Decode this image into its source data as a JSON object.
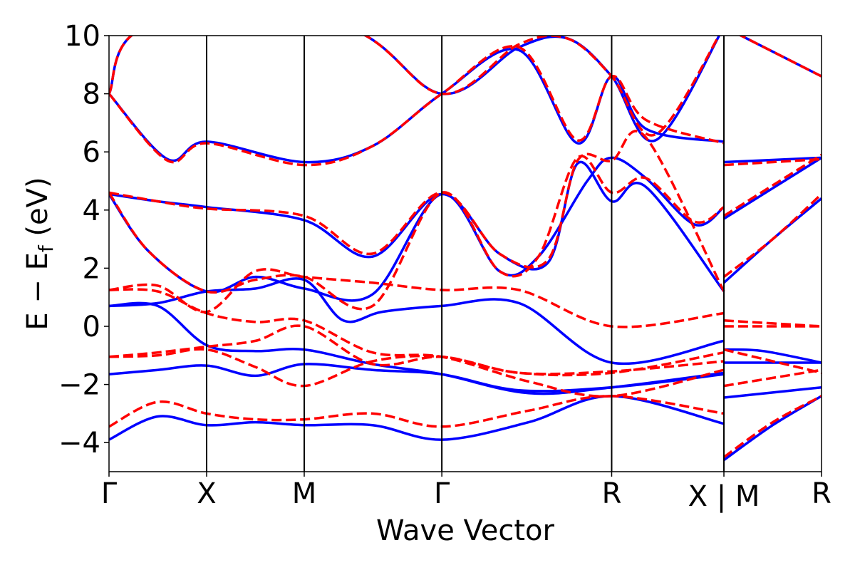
{
  "chart_data": {
    "type": "line",
    "title": "",
    "xlabel": "Wave Vector",
    "ylabel": "E − E",
    "ylabel_sub": "f",
    "ylabel_unit": " (eV)",
    "ylim": [
      -5,
      10
    ],
    "yticks": [
      -4,
      -2,
      0,
      2,
      4,
      6,
      8,
      10
    ],
    "ytick_labels": [
      "−4",
      "−2",
      "0",
      "2",
      "4",
      "6",
      "8",
      "10"
    ],
    "kpoints": [
      {
        "label": "Γ",
        "x": 0
      },
      {
        "label": "X",
        "x": 1
      },
      {
        "label": "M",
        "x": 2
      },
      {
        "label": "Γ",
        "x": 3.41
      },
      {
        "label": "R",
        "x": 5.15
      },
      {
        "label": "X | M",
        "x": 6.3
      },
      {
        "label": "R",
        "x": 7.3
      }
    ],
    "xlim": [
      0,
      7.3
    ],
    "colors": {
      "series_a": "#0000ff",
      "series_b": "#ff0000"
    },
    "series": [
      {
        "name": "series-a",
        "style": "solid",
        "bands": [
          [
            [
              0,
              -3.9
            ],
            [
              0.5,
              -3.1
            ],
            [
              1,
              -3.4
            ],
            [
              1.5,
              -3.3
            ],
            [
              2,
              -3.4
            ],
            [
              2.7,
              -3.4
            ],
            [
              3.41,
              -3.9
            ],
            [
              4.3,
              -3.3
            ],
            [
              5.15,
              -2.4
            ],
            [
              6.3,
              -3.35
            ],
            [
              6.3,
              -4.6
            ],
            [
              6.8,
              -3.4
            ],
            [
              7.3,
              -2.4
            ]
          ],
          [
            [
              0,
              -1.65
            ],
            [
              0.5,
              -1.5
            ],
            [
              1,
              -1.35
            ],
            [
              1.5,
              -1.7
            ],
            [
              2,
              -1.3
            ],
            [
              2.7,
              -1.5
            ],
            [
              3.41,
              -1.65
            ],
            [
              4.2,
              -2.2
            ],
            [
              5.15,
              -2.1
            ],
            [
              6.3,
              -1.65
            ],
            [
              6.3,
              -2.45
            ],
            [
              7.3,
              -2.1
            ]
          ],
          [
            [
              0,
              0.7
            ],
            [
              0.5,
              0.7
            ],
            [
              1,
              -0.65
            ],
            [
              1.5,
              -0.85
            ],
            [
              2,
              -0.8
            ],
            [
              2.7,
              -1.3
            ],
            [
              3.41,
              -1.65
            ],
            [
              4.3,
              -2.3
            ],
            [
              5.15,
              -2.1
            ],
            [
              6.3,
              -1.6
            ],
            [
              6.3,
              -1.25
            ],
            [
              7.3,
              -1.25
            ]
          ],
          [
            [
              0,
              4.55
            ],
            [
              0.4,
              2.6
            ],
            [
              1,
              1.2
            ],
            [
              1.5,
              1.7
            ],
            [
              2,
              1.3
            ],
            [
              2.7,
              1.1
            ],
            [
              3.41,
              4.55
            ],
            [
              4,
              1.9
            ],
            [
              4.4,
              2.4
            ],
            [
              4.9,
              5.0
            ],
            [
              5.15,
              5.8
            ],
            [
              5.5,
              5.1
            ],
            [
              6.0,
              3.5
            ],
            [
              6.3,
              4.1
            ],
            [
              6.3,
              3.7
            ],
            [
              7.3,
              5.8
            ]
          ],
          [
            [
              0,
              4.55
            ],
            [
              0.5,
              4.3
            ],
            [
              1,
              4.1
            ],
            [
              2,
              3.65
            ],
            [
              2.7,
              2.4
            ],
            [
              3.41,
              4.55
            ],
            [
              4,
              2.5
            ],
            [
              4.5,
              2.2
            ],
            [
              4.8,
              5.6
            ],
            [
              5.15,
              4.3
            ],
            [
              5.5,
              4.8
            ],
            [
              6.3,
              1.2
            ],
            [
              6.3,
              1.5
            ],
            [
              6.8,
              3.0
            ],
            [
              7.3,
              4.4
            ]
          ],
          [
            [
              0,
              8.0
            ],
            [
              0.6,
              5.75
            ],
            [
              1,
              6.35
            ],
            [
              2,
              5.65
            ],
            [
              2.7,
              6.2
            ],
            [
              3.41,
              8.0
            ],
            [
              4.2,
              9.5
            ],
            [
              4.8,
              6.3
            ],
            [
              5.15,
              8.6
            ],
            [
              5.5,
              6.8
            ],
            [
              6.3,
              6.35
            ],
            [
              6.3,
              5.65
            ],
            [
              7.3,
              5.8
            ]
          ],
          [
            [
              0,
              8.0
            ],
            [
              0.4,
              10.3
            ],
            [
              2.4,
              10.3
            ],
            [
              3.41,
              8.0
            ],
            [
              4.2,
              9.6
            ],
            [
              4.7,
              9.9
            ],
            [
              5.15,
              8.6
            ],
            [
              5.6,
              6.4
            ],
            [
              6.3,
              10.3
            ],
            [
              6.3,
              10.3
            ],
            [
              7.3,
              8.6
            ]
          ],
          [
            [
              0,
              0.7
            ],
            [
              0.5,
              0.8
            ],
            [
              1,
              1.2
            ],
            [
              1.5,
              1.3
            ],
            [
              2,
              1.6
            ],
            [
              2.4,
              0.2
            ],
            [
              2.8,
              0.5
            ],
            [
              3.41,
              0.7
            ],
            [
              4.2,
              0.8
            ],
            [
              5.15,
              -1.25
            ],
            [
              6.3,
              -0.5
            ],
            [
              6.3,
              -0.8
            ],
            [
              6.7,
              -0.85
            ],
            [
              7.3,
              -1.25
            ]
          ]
        ]
      },
      {
        "name": "series-b",
        "style": "dashed",
        "bands": [
          [
            [
              0,
              -3.45
            ],
            [
              0.5,
              -2.6
            ],
            [
              1,
              -3.0
            ],
            [
              1.5,
              -3.2
            ],
            [
              2,
              -3.2
            ],
            [
              2.7,
              -3.0
            ],
            [
              3.41,
              -3.45
            ],
            [
              4.3,
              -2.9
            ],
            [
              5.15,
              -2.4
            ],
            [
              6.3,
              -3.0
            ],
            [
              6.3,
              -4.5
            ],
            [
              6.8,
              -3.3
            ],
            [
              7.3,
              -2.4
            ]
          ],
          [
            [
              0,
              -1.05
            ],
            [
              0.5,
              -1.0
            ],
            [
              1,
              -0.8
            ],
            [
              1.5,
              -1.4
            ],
            [
              2,
              -2.05
            ],
            [
              2.7,
              -1.2
            ],
            [
              3.41,
              -1.05
            ],
            [
              4.2,
              -1.6
            ],
            [
              5.15,
              -1.55
            ],
            [
              6.3,
              -1.2
            ],
            [
              6.3,
              -2.05
            ],
            [
              7.3,
              -1.5
            ]
          ],
          [
            [
              0,
              1.25
            ],
            [
              0.5,
              1.2
            ],
            [
              1,
              0.45
            ],
            [
              1.5,
              0.15
            ],
            [
              2,
              0.2
            ],
            [
              2.7,
              -0.9
            ],
            [
              3.41,
              -1.05
            ],
            [
              4.3,
              -1.9
            ],
            [
              5.15,
              -2.4
            ],
            [
              6.3,
              -1.5
            ],
            [
              6.3,
              0.0
            ],
            [
              7.3,
              0.0
            ]
          ],
          [
            [
              0,
              1.25
            ],
            [
              0.5,
              1.4
            ],
            [
              1,
              0.5
            ],
            [
              1.5,
              1.9
            ],
            [
              2,
              1.7
            ],
            [
              2.7,
              1.5
            ],
            [
              3.41,
              1.25
            ],
            [
              4.2,
              1.25
            ],
            [
              5.15,
              0.0
            ],
            [
              6.3,
              0.45
            ],
            [
              6.3,
              0.2
            ],
            [
              7.3,
              0.0
            ]
          ],
          [
            [
              0,
              4.6
            ],
            [
              0.4,
              2.6
            ],
            [
              1,
              1.2
            ],
            [
              1.5,
              1.6
            ],
            [
              2,
              1.7
            ],
            [
              2.7,
              0.7
            ],
            [
              3.41,
              4.6
            ],
            [
              4,
              1.9
            ],
            [
              4.4,
              2.4
            ],
            [
              4.8,
              5.8
            ],
            [
              5.15,
              4.6
            ],
            [
              5.5,
              5.1
            ],
            [
              6.0,
              3.6
            ],
            [
              6.3,
              4.1
            ],
            [
              6.3,
              3.8
            ],
            [
              7.3,
              5.9
            ]
          ],
          [
            [
              0,
              4.6
            ],
            [
              0.5,
              4.3
            ],
            [
              1,
              4.05
            ],
            [
              2,
              3.8
            ],
            [
              2.7,
              2.5
            ],
            [
              3.41,
              4.6
            ],
            [
              4,
              2.5
            ],
            [
              4.5,
              2.3
            ],
            [
              4.8,
              5.7
            ],
            [
              5.15,
              5.7
            ],
            [
              5.5,
              6.5
            ],
            [
              6.3,
              1.2
            ],
            [
              6.3,
              1.7
            ],
            [
              6.8,
              3.0
            ],
            [
              7.3,
              4.55
            ]
          ],
          [
            [
              0,
              8.0
            ],
            [
              0.6,
              5.7
            ],
            [
              1,
              6.3
            ],
            [
              2,
              5.55
            ],
            [
              2.7,
              6.2
            ],
            [
              3.41,
              8.0
            ],
            [
              4.2,
              9.6
            ],
            [
              4.8,
              6.4
            ],
            [
              5.15,
              8.6
            ],
            [
              5.5,
              7.1
            ],
            [
              6.3,
              6.3
            ],
            [
              6.3,
              5.55
            ],
            [
              7.3,
              5.75
            ]
          ],
          [
            [
              0,
              8.0
            ],
            [
              0.4,
              10.3
            ],
            [
              2.4,
              10.3
            ],
            [
              3.41,
              8.0
            ],
            [
              4.2,
              9.7
            ],
            [
              4.7,
              9.9
            ],
            [
              5.15,
              8.6
            ],
            [
              5.6,
              6.6
            ],
            [
              6.3,
              10.3
            ],
            [
              6.3,
              10.3
            ],
            [
              7.3,
              8.6
            ]
          ],
          [
            [
              0,
              -1.05
            ],
            [
              0.5,
              -0.9
            ],
            [
              1,
              -0.7
            ],
            [
              1.5,
              -0.5
            ],
            [
              2,
              0.0
            ],
            [
              2.7,
              -1.3
            ],
            [
              3.41,
              -1.05
            ],
            [
              4.2,
              -1.6
            ],
            [
              5.15,
              -1.6
            ],
            [
              6.3,
              -0.9
            ],
            [
              6.3,
              -0.8
            ],
            [
              6.8,
              -1.2
            ],
            [
              7.3,
              -1.6
            ]
          ]
        ]
      }
    ]
  }
}
